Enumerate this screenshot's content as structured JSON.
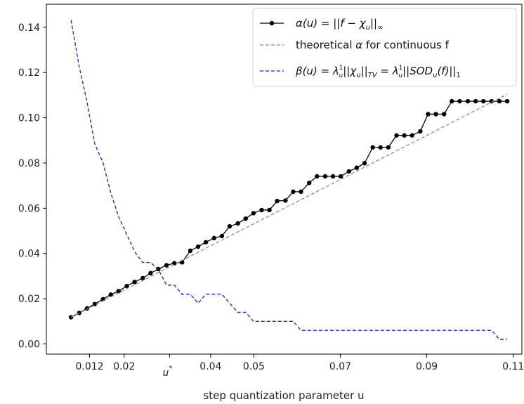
{
  "chart_data": {
    "type": "line",
    "xlabel": "step quantization parameter u",
    "ylabel": "",
    "title": "",
    "xlim": [
      0.002,
      0.112
    ],
    "ylim": [
      -0.0045,
      0.1502
    ],
    "grid": false,
    "legend_position": "top-right",
    "x_ticks": [
      {
        "value": 0.012,
        "label": "0.012"
      },
      {
        "value": 0.02,
        "label": "0.02"
      },
      {
        "value": 0.04,
        "label": "0.04"
      },
      {
        "value": 0.05,
        "label": "0.05"
      },
      {
        "value": 0.07,
        "label": "0.07"
      },
      {
        "value": 0.09,
        "label": "0.09"
      },
      {
        "value": 0.11,
        "label": "0.11"
      }
    ],
    "x_special_tick": {
      "value": 0.0305,
      "label": "u*"
    },
    "y_ticks": [
      {
        "value": 0.0,
        "label": "0.00"
      },
      {
        "value": 0.02,
        "label": "0.02"
      },
      {
        "value": 0.04,
        "label": "0.04"
      },
      {
        "value": 0.06,
        "label": "0.06"
      },
      {
        "value": 0.08,
        "label": "0.08"
      },
      {
        "value": 0.1,
        "label": "0.10"
      },
      {
        "value": 0.12,
        "label": "0.12"
      },
      {
        "value": 0.14,
        "label": "0.14"
      }
    ],
    "series": [
      {
        "name": "α(u) = ||f − χ_u||_∞",
        "color": "#000000",
        "style": "solid",
        "marker": "circle",
        "x": [
          0.0077,
          0.0096,
          0.0114,
          0.0132,
          0.0151,
          0.0169,
          0.0187,
          0.0206,
          0.0224,
          0.0243,
          0.0261,
          0.0279,
          0.0298,
          0.0316,
          0.0334,
          0.0353,
          0.0371,
          0.0389,
          0.0408,
          0.0426,
          0.0444,
          0.0463,
          0.0481,
          0.0499,
          0.0518,
          0.0536,
          0.0554,
          0.0573,
          0.0591,
          0.0609,
          0.0628,
          0.0646,
          0.0665,
          0.0683,
          0.0701,
          0.072,
          0.0738,
          0.0756,
          0.0775,
          0.0793,
          0.0811,
          0.083,
          0.0848,
          0.0866,
          0.0885,
          0.0903,
          0.0921,
          0.094,
          0.0958,
          0.0976,
          0.0995,
          0.1013,
          0.1031,
          0.105,
          0.1068,
          0.1086
        ],
        "y": [
          0.0118,
          0.0137,
          0.0157,
          0.0176,
          0.0198,
          0.0218,
          0.0233,
          0.0256,
          0.0274,
          0.0291,
          0.0313,
          0.0331,
          0.0348,
          0.0357,
          0.0361,
          0.0412,
          0.043,
          0.045,
          0.0468,
          0.0477,
          0.052,
          0.0533,
          0.0554,
          0.0578,
          0.0592,
          0.0592,
          0.0632,
          0.0634,
          0.0673,
          0.0673,
          0.0712,
          0.0741,
          0.0741,
          0.0741,
          0.0741,
          0.0763,
          0.0779,
          0.0799,
          0.0869,
          0.0869,
          0.0869,
          0.0922,
          0.0922,
          0.0922,
          0.094,
          0.1016,
          0.1016,
          0.1016,
          0.1073,
          0.1073,
          0.1073,
          0.1073,
          0.1073,
          0.1073,
          0.1073,
          0.1073
        ]
      },
      {
        "name": "theoretical α for continuous f",
        "color": "#8c8c8c",
        "style": "dashed",
        "x": [
          0.0077,
          0.1086
        ],
        "y": [
          0.0118,
          0.1104
        ]
      },
      {
        "name": "β(u) = λ (1/u) ||χ_u||_TV = λ (1/u) ||SOD_u(f)||_1",
        "color": "#1f1fd6",
        "style": "dashed",
        "x": [
          0.0077,
          0.0096,
          0.0114,
          0.0132,
          0.0151,
          0.0169,
          0.0187,
          0.0206,
          0.0224,
          0.0243,
          0.0261,
          0.0279,
          0.0298,
          0.0316,
          0.0334,
          0.0353,
          0.0371,
          0.0389,
          0.0408,
          0.0426,
          0.0444,
          0.0463,
          0.0481,
          0.0499,
          0.0518,
          0.0536,
          0.0554,
          0.0573,
          0.0591,
          0.0609,
          0.0628,
          0.0646,
          0.0665,
          0.0683,
          0.0701,
          0.072,
          0.0738,
          0.0756,
          0.0775,
          0.0793,
          0.0811,
          0.083,
          0.0848,
          0.0866,
          0.0885,
          0.0903,
          0.0921,
          0.094,
          0.0958,
          0.0976,
          0.0995,
          0.1013,
          0.1031,
          0.105,
          0.1068,
          0.1086
        ],
        "y": [
          0.1432,
          0.1226,
          0.107,
          0.0884,
          0.0802,
          0.0668,
          0.0563,
          0.0484,
          0.0408,
          0.036,
          0.036,
          0.033,
          0.026,
          0.026,
          0.022,
          0.022,
          0.018,
          0.022,
          0.022,
          0.022,
          0.018,
          0.014,
          0.014,
          0.01,
          0.01,
          0.01,
          0.01,
          0.01,
          0.01,
          0.006,
          0.006,
          0.006,
          0.006,
          0.006,
          0.006,
          0.006,
          0.006,
          0.006,
          0.006,
          0.006,
          0.006,
          0.006,
          0.006,
          0.006,
          0.006,
          0.006,
          0.006,
          0.006,
          0.006,
          0.006,
          0.006,
          0.006,
          0.006,
          0.006,
          0.002,
          0.002
        ]
      }
    ]
  }
}
